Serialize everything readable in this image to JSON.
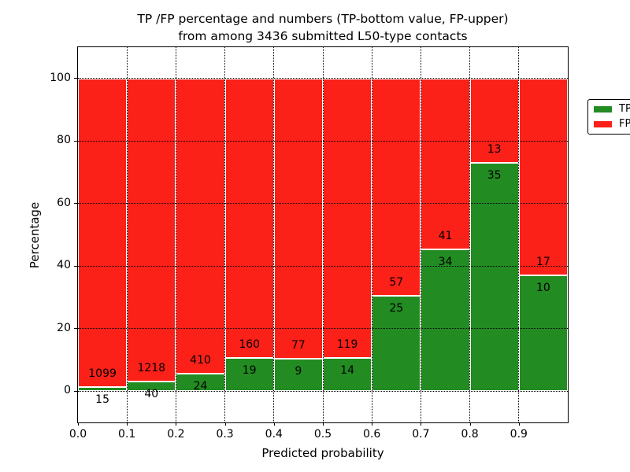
{
  "chart_data": {
    "type": "bar",
    "stacked": true,
    "normalized_to_percent": true,
    "title_line1": "TP /FP percentage and numbers (TP-bottom value, FP-upper)",
    "title_line2": "from among 3436 submitted L50-type contacts",
    "xlabel": "Predicted probability",
    "ylabel": "Percentage",
    "xlim": [
      0.0,
      1.0
    ],
    "ylim": [
      -10,
      110
    ],
    "x_tick_labels": [
      "0.0",
      "0.1",
      "0.2",
      "0.3",
      "0.4",
      "0.5",
      "0.6",
      "0.7",
      "0.8",
      "0.9"
    ],
    "y_tick_values": [
      0,
      20,
      40,
      60,
      80,
      100
    ],
    "y_tick_labels": [
      "0",
      "20",
      "40",
      "60",
      "80",
      "100"
    ],
    "grid": {
      "visible": true,
      "style": "dotted",
      "color": "#000000",
      "axes": "both"
    },
    "background_color": "#ffffff",
    "bar_edge_color": "#ffffff",
    "categories": [
      "0.0-0.1",
      "0.1-0.2",
      "0.2-0.3",
      "0.3-0.4",
      "0.4-0.5",
      "0.5-0.6",
      "0.6-0.7",
      "0.7-0.8",
      "0.8-0.9",
      "0.9-1.0"
    ],
    "series": [
      {
        "name": "TP",
        "color": "#228b22",
        "position": "bottom",
        "values": [
          15,
          40,
          24,
          19,
          9,
          14,
          25,
          34,
          35,
          10
        ]
      },
      {
        "name": "FP",
        "color": "#fb2018",
        "position": "top",
        "values": [
          1099,
          1218,
          410,
          160,
          77,
          119,
          57,
          41,
          13,
          17
        ]
      }
    ],
    "tp_percent_of_bar": [
      1.35,
      3.18,
      5.53,
      10.61,
      10.47,
      10.53,
      30.49,
      45.33,
      72.92,
      37.04
    ],
    "legend": {
      "position": "upper right",
      "entries": [
        {
          "label": "TP",
          "color": "#228b22"
        },
        {
          "label": "FP",
          "color": "#fb2018"
        }
      ]
    }
  }
}
